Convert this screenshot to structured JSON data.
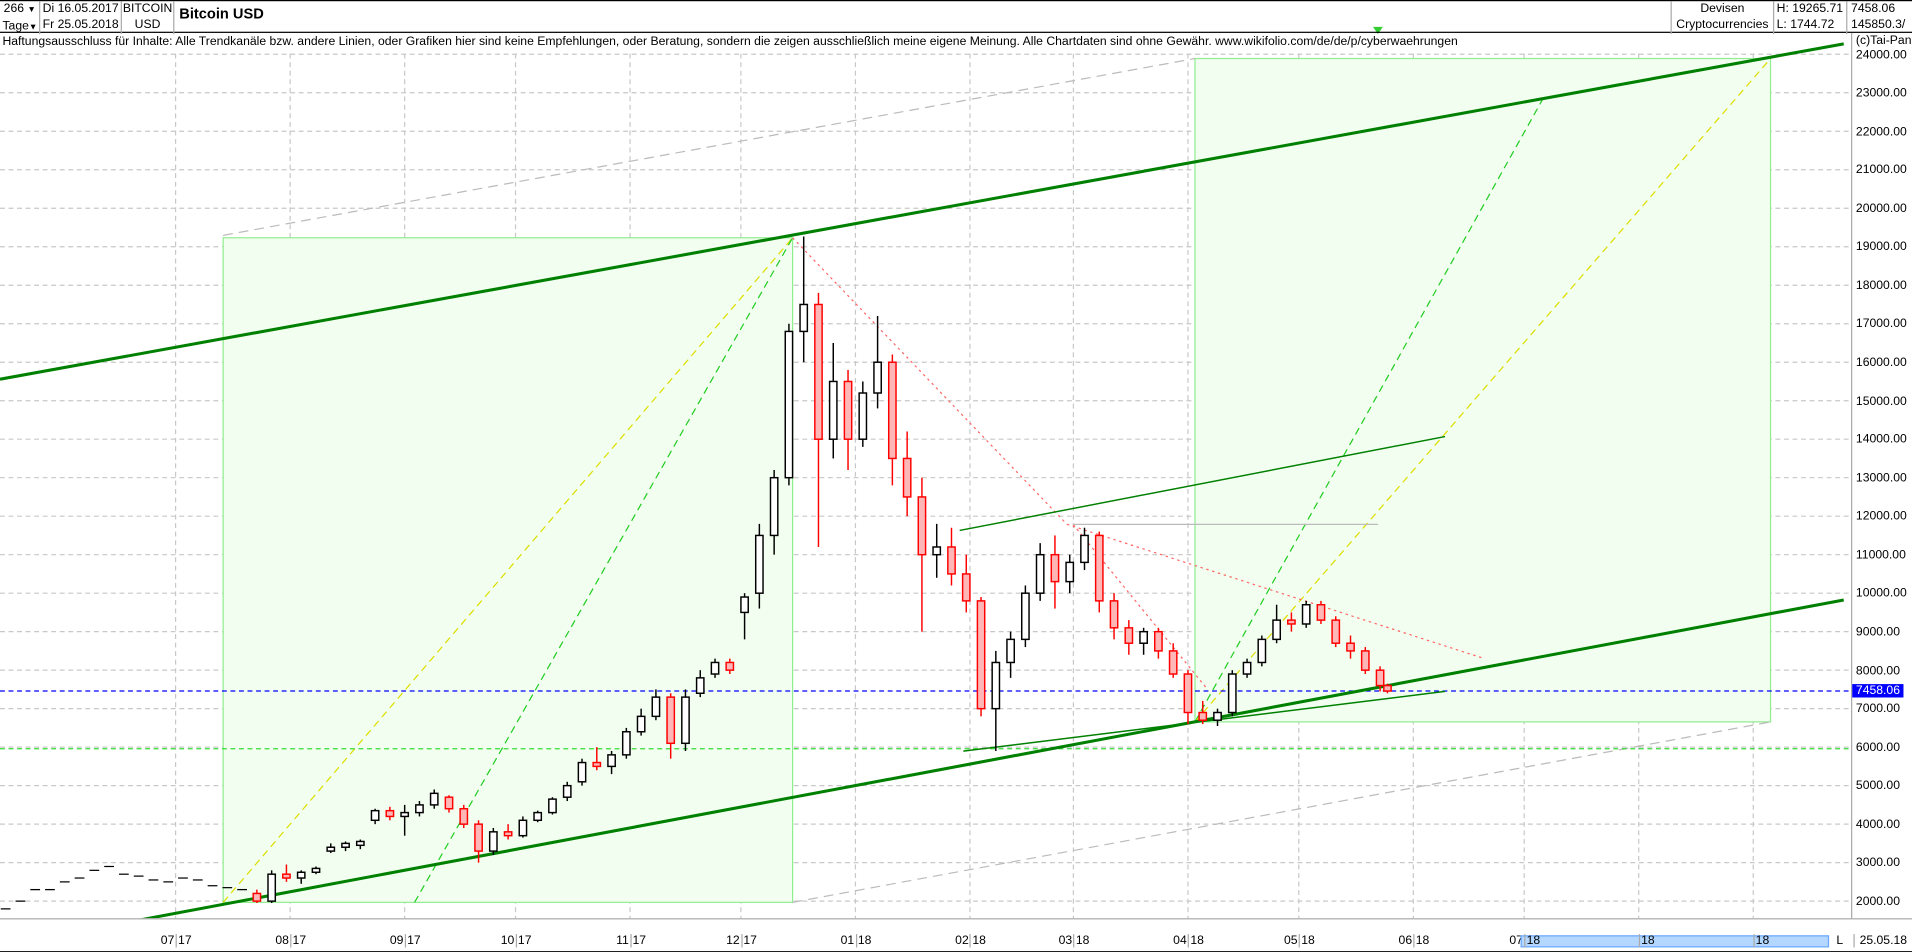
{
  "header": {
    "bars_count": "266",
    "period": "Tage",
    "date_from": "Di 16.05.2017",
    "date_to": "Fr 25.05.2018",
    "symbol_line1": "BITCOIN",
    "symbol_line2": "USD",
    "title": "Bitcoin USD",
    "category_line1": "Devisen",
    "category_line2": "Cryptocurrencies",
    "high": "H: 19265.71",
    "low": "L: 1744.72",
    "last": "7458.06",
    "volume": "145850.3/"
  },
  "disclaimer": "Haftungsausschluss für Inhalte: Alle Trendkanäle bzw. andere Linien, oder Grafiken hier sind keine Empfehlungen, oder Beratung, sondern die zeigen ausschließlich meine eigene Meinung. Alle Chartdaten sind ohne Gewähr.  www.wikifolio.com/de/de/p/cyberwaehrungen",
  "copyright": "(c)Tai-Pan",
  "footer": {
    "scroll_marker": "L",
    "end_date": "25.05.18"
  },
  "colors": {
    "up_fill": "#ffffff",
    "up_stroke": "#000000",
    "down_fill": "#ffb6b6",
    "down_stroke": "#ff0000",
    "channel": "#008000",
    "box_fill": "#f2fff0",
    "last_price_line": "#0000ff"
  },
  "chart_data": {
    "type": "candlestick",
    "title": "Bitcoin USD",
    "ylim": [
      2000,
      24000
    ],
    "grid": true,
    "yticks": [
      "24000.00",
      "23000.00",
      "22000.00",
      "21000.00",
      "20000.00",
      "19000.00",
      "18000.00",
      "17000.00",
      "16000.00",
      "15000.00",
      "14000.00",
      "13000.00",
      "12000.00",
      "11000.00",
      "10000.00",
      "9000.00",
      "8000.00",
      "7000.00",
      "6000.00",
      "5000.00",
      "4000.00",
      "3000.00",
      "2000.00"
    ],
    "last_price": 7458.06,
    "last_price_label": "7458.06",
    "x_labels": [
      {
        "month": "07",
        "year": "17",
        "date": "2017-07-01"
      },
      {
        "month": "08",
        "year": "17",
        "date": "2017-08-01"
      },
      {
        "month": "09",
        "year": "17",
        "date": "2017-09-01"
      },
      {
        "month": "10",
        "year": "17",
        "date": "2017-10-01"
      },
      {
        "month": "11",
        "year": "17",
        "date": "2017-11-01"
      },
      {
        "month": "12",
        "year": "17",
        "date": "2017-12-01"
      },
      {
        "month": "01",
        "year": "18",
        "date": "2018-01-01"
      },
      {
        "month": "02",
        "year": "18",
        "date": "2018-02-01"
      },
      {
        "month": "03",
        "year": "18",
        "date": "2018-03-01"
      },
      {
        "month": "04",
        "year": "18",
        "date": "2018-04-01"
      },
      {
        "month": "05",
        "year": "18",
        "date": "2018-05-01"
      },
      {
        "month": "06",
        "year": "18",
        "date": "2018-06-01"
      },
      {
        "month": "07",
        "year": "18",
        "date": "2018-07-01"
      },
      {
        "month": "08",
        "year": "18",
        "date": "2018-08-01"
      },
      {
        "month": "09",
        "year": "18",
        "date": "2018-09-01"
      }
    ],
    "candles_columns": [
      "date",
      "open",
      "high",
      "low",
      "close"
    ],
    "candles": [
      [
        "2017-05-16",
        1800,
        1800,
        1800,
        1800
      ],
      [
        "2017-05-20",
        2000,
        2000,
        2000,
        2000
      ],
      [
        "2017-05-24",
        2300,
        2300,
        2300,
        2300
      ],
      [
        "2017-05-28",
        2300,
        2300,
        2300,
        2300
      ],
      [
        "2017-06-01",
        2500,
        2500,
        2500,
        2500
      ],
      [
        "2017-06-05",
        2600,
        2600,
        2600,
        2600
      ],
      [
        "2017-06-09",
        2800,
        2800,
        2800,
        2800
      ],
      [
        "2017-06-13",
        2900,
        2900,
        2900,
        2900
      ],
      [
        "2017-06-17",
        2700,
        2700,
        2700,
        2700
      ],
      [
        "2017-06-21",
        2650,
        2650,
        2650,
        2650
      ],
      [
        "2017-06-25",
        2550,
        2550,
        2550,
        2550
      ],
      [
        "2017-06-29",
        2500,
        2500,
        2500,
        2500
      ],
      [
        "2017-07-03",
        2600,
        2600,
        2600,
        2600
      ],
      [
        "2017-07-07",
        2550,
        2550,
        2550,
        2550
      ],
      [
        "2017-07-11",
        2400,
        2400,
        2400,
        2400
      ],
      [
        "2017-07-15",
        2350,
        2350,
        2350,
        2350
      ],
      [
        "2017-07-19",
        2300,
        2300,
        2300,
        2300
      ],
      [
        "2017-07-23",
        2200,
        2300,
        1950,
        2000
      ],
      [
        "2017-07-27",
        2000,
        2800,
        1950,
        2700
      ],
      [
        "2017-07-31",
        2700,
        2950,
        2500,
        2600
      ],
      [
        "2017-08-04",
        2600,
        2800,
        2450,
        2750
      ],
      [
        "2017-08-08",
        2750,
        2900,
        2700,
        2850
      ],
      [
        "2017-08-12",
        3300,
        3500,
        3250,
        3400
      ],
      [
        "2017-08-16",
        3400,
        3550,
        3300,
        3500
      ],
      [
        "2017-08-20",
        3450,
        3600,
        3350,
        3550
      ],
      [
        "2017-08-24",
        4100,
        4400,
        4000,
        4350
      ],
      [
        "2017-08-28",
        4350,
        4450,
        4100,
        4200
      ],
      [
        "2017-09-01",
        4200,
        4500,
        3700,
        4300
      ],
      [
        "2017-09-05",
        4300,
        4600,
        4200,
        4500
      ],
      [
        "2017-09-09",
        4500,
        4900,
        4400,
        4800
      ],
      [
        "2017-09-13",
        4700,
        4750,
        4300,
        4400
      ],
      [
        "2017-09-17",
        4400,
        4500,
        3900,
        4000
      ],
      [
        "2017-09-21",
        4000,
        4100,
        3000,
        3300
      ],
      [
        "2017-09-25",
        3300,
        3900,
        3200,
        3800
      ],
      [
        "2017-09-29",
        3800,
        4000,
        3600,
        3700
      ],
      [
        "2017-10-03",
        3700,
        4200,
        3650,
        4100
      ],
      [
        "2017-10-07",
        4100,
        4350,
        4050,
        4300
      ],
      [
        "2017-10-11",
        4300,
        4700,
        4250,
        4650
      ],
      [
        "2017-10-15",
        4700,
        5100,
        4600,
        5000
      ],
      [
        "2017-10-19",
        5100,
        5700,
        5000,
        5600
      ],
      [
        "2017-10-23",
        5600,
        6000,
        5400,
        5500
      ],
      [
        "2017-10-27",
        5500,
        5900,
        5300,
        5800
      ],
      [
        "2017-10-31",
        5800,
        6500,
        5700,
        6400
      ],
      [
        "2017-11-04",
        6400,
        7000,
        6300,
        6800
      ],
      [
        "2017-11-08",
        6800,
        7500,
        6700,
        7300
      ],
      [
        "2017-11-12",
        7300,
        7400,
        5700,
        6100
      ],
      [
        "2017-11-16",
        6100,
        7500,
        5900,
        7300
      ],
      [
        "2017-11-20",
        7400,
        8000,
        7300,
        7800
      ],
      [
        "2017-11-24",
        7900,
        8300,
        7800,
        8200
      ],
      [
        "2017-11-28",
        8200,
        8300,
        7900,
        8000
      ],
      [
        "2017-12-02",
        9500,
        10000,
        8800,
        9900
      ],
      [
        "2017-12-06",
        10000,
        11800,
        9600,
        11500
      ],
      [
        "2017-12-10",
        11500,
        13200,
        11000,
        13000
      ],
      [
        "2017-12-14",
        13000,
        17000,
        12800,
        16800
      ],
      [
        "2017-12-18",
        16800,
        19265.71,
        16000,
        17500
      ],
      [
        "2017-12-22",
        17500,
        17800,
        11200,
        14000
      ],
      [
        "2017-12-26",
        14000,
        16500,
        13500,
        15500
      ],
      [
        "2017-12-30",
        15500,
        15800,
        13200,
        14000
      ],
      [
        "2018-01-03",
        14000,
        15500,
        13800,
        15200
      ],
      [
        "2018-01-07",
        15200,
        17200,
        14800,
        16000
      ],
      [
        "2018-01-11",
        16000,
        16200,
        12800,
        13500
      ],
      [
        "2018-01-15",
        13500,
        14200,
        12000,
        12500
      ],
      [
        "2018-01-19",
        12500,
        13000,
        9000,
        11000
      ],
      [
        "2018-01-23",
        11000,
        11800,
        10400,
        11200
      ],
      [
        "2018-01-27",
        11200,
        11700,
        10200,
        10500
      ],
      [
        "2018-01-31",
        10500,
        11000,
        9500,
        9800
      ],
      [
        "2018-02-04",
        9800,
        9900,
        6800,
        7000
      ],
      [
        "2018-02-08",
        7000,
        8500,
        5900,
        8200
      ],
      [
        "2018-02-12",
        8200,
        9000,
        7800,
        8800
      ],
      [
        "2018-02-16",
        8800,
        10200,
        8600,
        10000
      ],
      [
        "2018-02-20",
        10000,
        11300,
        9800,
        11000
      ],
      [
        "2018-02-24",
        11000,
        11500,
        9600,
        10300
      ],
      [
        "2018-02-28",
        10300,
        11000,
        10000,
        10800
      ],
      [
        "2018-03-04",
        10800,
        11700,
        10600,
        11500
      ],
      [
        "2018-03-08",
        11500,
        11600,
        9500,
        9800
      ],
      [
        "2018-03-12",
        9800,
        10000,
        8800,
        9100
      ],
      [
        "2018-03-16",
        9100,
        9300,
        8400,
        8700
      ],
      [
        "2018-03-20",
        8700,
        9100,
        8400,
        9000
      ],
      [
        "2018-03-24",
        9000,
        9100,
        8300,
        8500
      ],
      [
        "2018-03-28",
        8500,
        8700,
        7800,
        7900
      ],
      [
        "2018-04-01",
        7900,
        8000,
        6600,
        6900
      ],
      [
        "2018-04-05",
        6900,
        7200,
        6600,
        6700
      ],
      [
        "2018-04-09",
        6700,
        7000,
        6550,
        6900
      ],
      [
        "2018-04-13",
        6900,
        8000,
        6800,
        7900
      ],
      [
        "2018-04-17",
        7900,
        8300,
        7800,
        8200
      ],
      [
        "2018-04-21",
        8200,
        8900,
        8100,
        8800
      ],
      [
        "2018-04-25",
        8800,
        9700,
        8700,
        9300
      ],
      [
        "2018-04-29",
        9300,
        9500,
        9000,
        9200
      ],
      [
        "2018-05-03",
        9200,
        9800,
        9100,
        9700
      ],
      [
        "2018-05-07",
        9700,
        9800,
        9200,
        9300
      ],
      [
        "2018-05-11",
        9300,
        9400,
        8600,
        8700
      ],
      [
        "2018-05-15",
        8700,
        8900,
        8300,
        8500
      ],
      [
        "2018-05-19",
        8500,
        8600,
        7900,
        8000
      ],
      [
        "2018-05-23",
        8000,
        8100,
        7450,
        7600
      ],
      [
        "2018-05-25",
        7600,
        7650,
        7400,
        7458.06
      ]
    ]
  }
}
